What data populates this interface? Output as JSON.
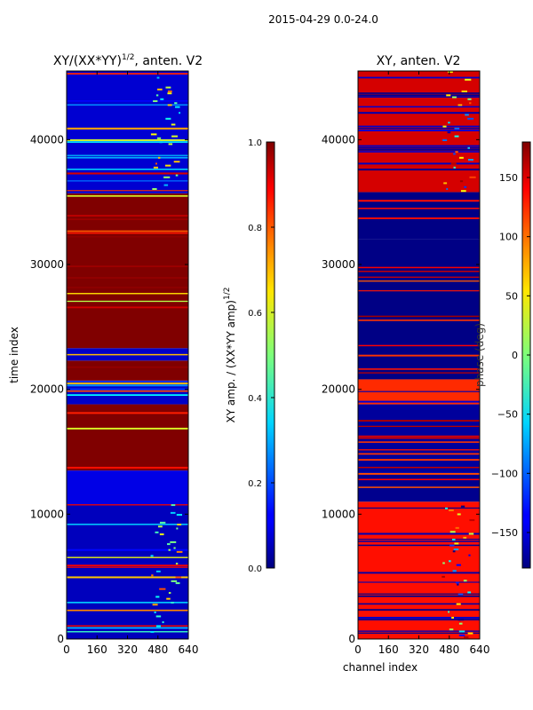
{
  "suptitle": "2015-04-29 0.0-24.0",
  "chart_data": [
    {
      "type": "heatmap",
      "title_main": "XY/(XX*YY)",
      "title_sup": "1/2",
      "title_tail": ", anten. V2",
      "xlabel": "",
      "ylabel": "time index",
      "xlim": [
        0,
        640
      ],
      "ylim": [
        0,
        45500
      ],
      "xticks": [
        0,
        160,
        320,
        480,
        640
      ],
      "yticks": [
        0,
        10000,
        20000,
        30000,
        40000
      ],
      "colormap": "jet",
      "colorbar": {
        "label_main": "XY amp. / (XX*YY amp)",
        "label_sup": "1/2",
        "range": [
          0.0,
          1.0
        ],
        "ticks": [
          0.0,
          0.2,
          0.4,
          0.6,
          0.8,
          1.0
        ],
        "tick_labels": [
          "0.0",
          "0.2",
          "0.4",
          "0.6",
          "0.8",
          "1.0"
        ]
      },
      "bands": [
        {
          "y0": 0,
          "y1": 10800,
          "value": 0.06,
          "note": "low amplitude, bright features ch 440-600"
        },
        {
          "y0": 10800,
          "y1": 13500,
          "value": 0.1
        },
        {
          "y0": 13500,
          "y1": 18800,
          "value": 1.0
        },
        {
          "y0": 18800,
          "y1": 20700,
          "value": 0.07
        },
        {
          "y0": 20700,
          "y1": 22300,
          "value": 1.0
        },
        {
          "y0": 22300,
          "y1": 23300,
          "value": 0.07
        },
        {
          "y0": 23300,
          "y1": 35700,
          "value": 1.0
        },
        {
          "y0": 35700,
          "y1": 45500,
          "value": 0.08,
          "note": "low amplitude, bright features ch 440-600"
        }
      ]
    },
    {
      "type": "heatmap",
      "title_main": "XY, anten. V2",
      "xlabel": "channel index",
      "ylabel": "",
      "xlim": [
        0,
        640
      ],
      "ylim": [
        0,
        45500
      ],
      "xticks": [
        0,
        160,
        320,
        480,
        640
      ],
      "yticks": [
        0,
        10000,
        20000,
        30000,
        40000
      ],
      "colormap": "jet",
      "colorbar": {
        "label_main": "phase (deg)",
        "range": [
          -180,
          180
        ],
        "ticks": [
          -150,
          -100,
          -50,
          0,
          50,
          100,
          150
        ],
        "tick_labels": [
          "−150",
          "−100",
          "−50",
          "0",
          "50",
          "100",
          "150"
        ]
      },
      "bands": [
        {
          "y0": 0,
          "y1": 11000,
          "value": 130,
          "note": "orange/red phase, mixed ch 420-640"
        },
        {
          "y0": 11000,
          "y1": 13300,
          "value": -175
        },
        {
          "y0": 13300,
          "y1": 18800,
          "value": -170
        },
        {
          "y0": 18800,
          "y1": 20800,
          "value": 120
        },
        {
          "y0": 20800,
          "y1": 32000,
          "value": -178
        },
        {
          "y0": 32000,
          "y1": 35800,
          "value": -178
        },
        {
          "y0": 35800,
          "y1": 45500,
          "value": 150,
          "note": "striped red/blue"
        }
      ]
    }
  ]
}
